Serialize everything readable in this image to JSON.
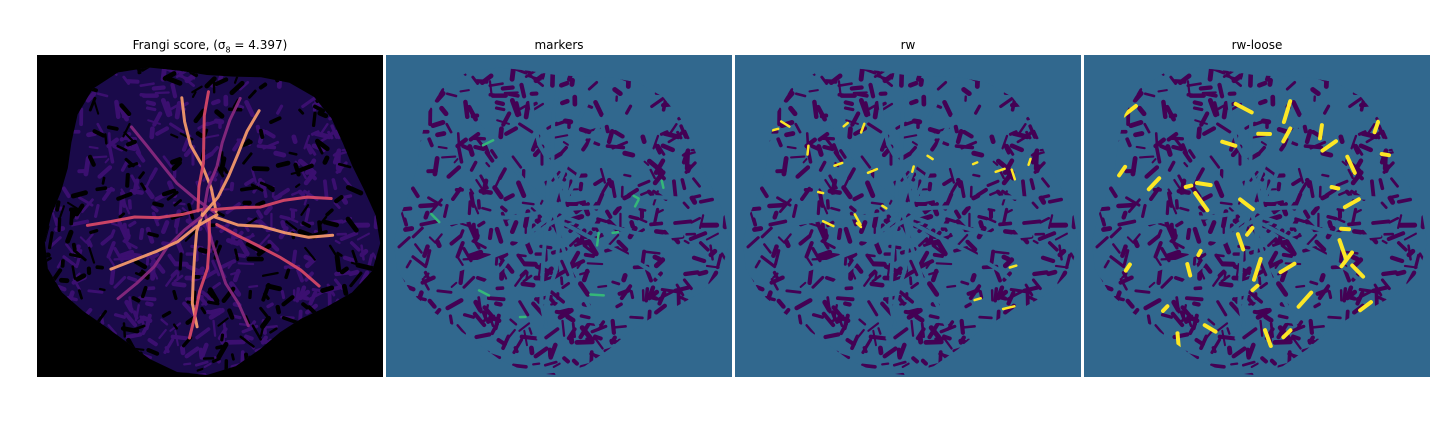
{
  "panels": [
    {
      "title": "Frangi score, (σ",
      "title_sub": "8",
      "title_tail": " = 4.397)",
      "kind": "frangi",
      "background": "#000000"
    },
    {
      "title": "markers",
      "kind": "markers",
      "background": "#31688e"
    },
    {
      "title": "rw",
      "kind": "rw",
      "background": "#31688e"
    },
    {
      "title": "rw-loose",
      "kind": "rw-loose",
      "background": "#31688e"
    }
  ],
  "colors": {
    "viridis_dark": "#440154",
    "viridis_mid": "#31688e",
    "viridis_green": "#35b779",
    "viridis_yellow": "#fde725",
    "magma_purple": "#3b0f70",
    "magma_violet": "#8c2981",
    "magma_pink": "#de4968",
    "magma_orange": "#fe9f6d",
    "magma_light": "#fcfdbf"
  }
}
